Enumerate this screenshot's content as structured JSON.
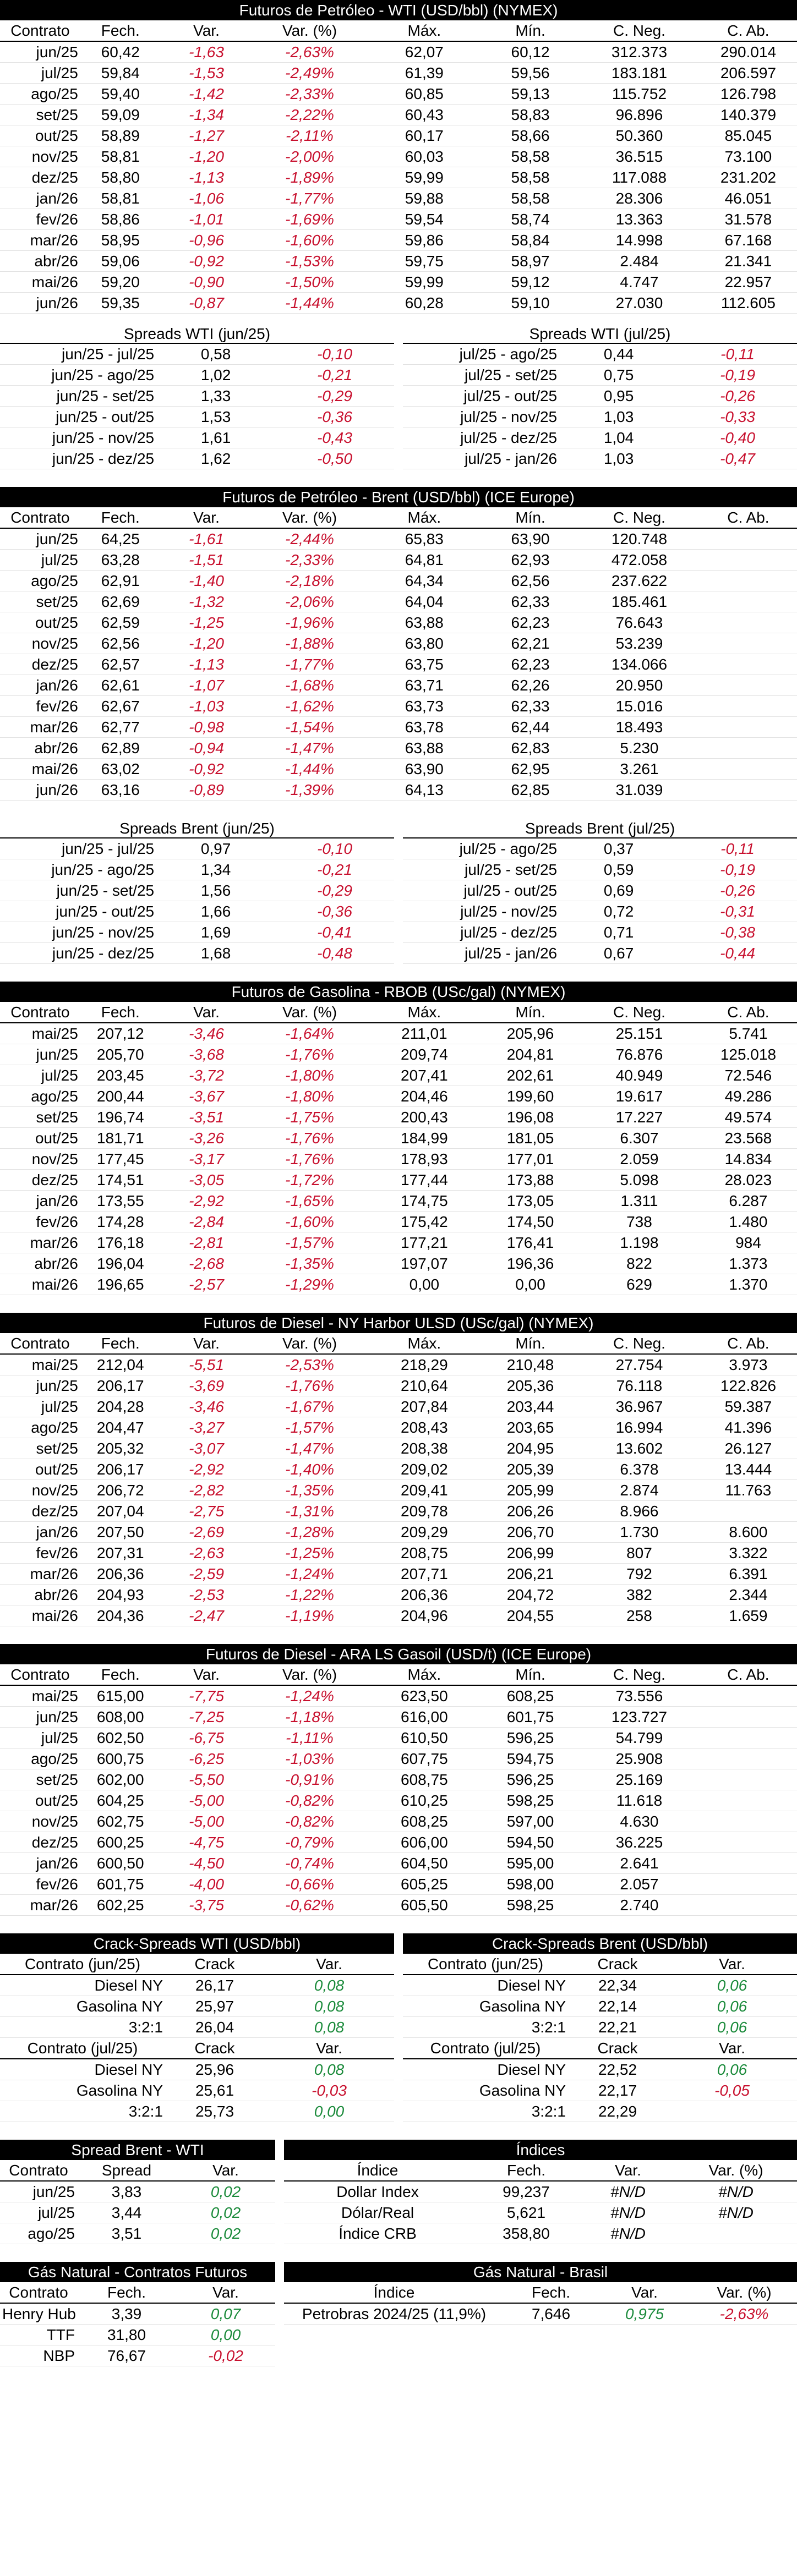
{
  "wti": {
    "title": "Futuros de Petróleo - WTI (USD/bbl) (NYMEX)",
    "headers": [
      "Contrato",
      "Fech.",
      "Var.",
      "Var. (%)",
      "Máx.",
      "Mín.",
      "C. Neg.",
      "C. Ab."
    ],
    "rows": [
      [
        "jun/25",
        "60,42",
        "-1,63",
        "-2,63%",
        "62,07",
        "60,12",
        "312.373",
        "290.014"
      ],
      [
        "jul/25",
        "59,84",
        "-1,53",
        "-2,49%",
        "61,39",
        "59,56",
        "183.181",
        "206.597"
      ],
      [
        "ago/25",
        "59,40",
        "-1,42",
        "-2,33%",
        "60,85",
        "59,13",
        "115.752",
        "126.798"
      ],
      [
        "set/25",
        "59,09",
        "-1,34",
        "-2,22%",
        "60,43",
        "58,83",
        "96.896",
        "140.379"
      ],
      [
        "out/25",
        "58,89",
        "-1,27",
        "-2,11%",
        "60,17",
        "58,66",
        "50.360",
        "85.045"
      ],
      [
        "nov/25",
        "58,81",
        "-1,20",
        "-2,00%",
        "60,03",
        "58,58",
        "36.515",
        "73.100"
      ],
      [
        "dez/25",
        "58,80",
        "-1,13",
        "-1,89%",
        "59,99",
        "58,58",
        "117.088",
        "231.202"
      ],
      [
        "jan/26",
        "58,81",
        "-1,06",
        "-1,77%",
        "59,88",
        "58,58",
        "28.306",
        "46.051"
      ],
      [
        "fev/26",
        "58,86",
        "-1,01",
        "-1,69%",
        "59,54",
        "58,74",
        "13.363",
        "31.578"
      ],
      [
        "mar/26",
        "58,95",
        "-0,96",
        "-1,60%",
        "59,86",
        "58,84",
        "14.998",
        "67.168"
      ],
      [
        "abr/26",
        "59,06",
        "-0,92",
        "-1,53%",
        "59,75",
        "58,97",
        "2.484",
        "21.341"
      ],
      [
        "mai/26",
        "59,20",
        "-0,90",
        "-1,50%",
        "59,99",
        "59,12",
        "4.747",
        "22.957"
      ],
      [
        "jun/26",
        "59,35",
        "-0,87",
        "-1,44%",
        "60,28",
        "59,10",
        "27.030",
        "112.605"
      ]
    ],
    "spreads_left_title": "Spreads WTI (jun/25)",
    "spreads_right_title": "Spreads WTI (jul/25)",
    "spreads_left": [
      [
        "jun/25 - jul/25",
        "0,58",
        "-0,10"
      ],
      [
        "jun/25 - ago/25",
        "1,02",
        "-0,21"
      ],
      [
        "jun/25 - set/25",
        "1,33",
        "-0,29"
      ],
      [
        "jun/25 - out/25",
        "1,53",
        "-0,36"
      ],
      [
        "jun/25 - nov/25",
        "1,61",
        "-0,43"
      ],
      [
        "jun/25 - dez/25",
        "1,62",
        "-0,50"
      ]
    ],
    "spreads_right": [
      [
        "jul/25 - ago/25",
        "0,44",
        "-0,11"
      ],
      [
        "jul/25 - set/25",
        "0,75",
        "-0,19"
      ],
      [
        "jul/25 - out/25",
        "0,95",
        "-0,26"
      ],
      [
        "jul/25 - nov/25",
        "1,03",
        "-0,33"
      ],
      [
        "jul/25 - dez/25",
        "1,04",
        "-0,40"
      ],
      [
        "jul/25 - jan/26",
        "1,03",
        "-0,47"
      ]
    ]
  },
  "brent": {
    "title": "Futuros de Petróleo - Brent (USD/bbl) (ICE Europe)",
    "headers": [
      "Contrato",
      "Fech.",
      "Var.",
      "Var. (%)",
      "Máx.",
      "Mín.",
      "C. Neg.",
      "C. Ab."
    ],
    "rows": [
      [
        "jun/25",
        "64,25",
        "-1,61",
        "-2,44%",
        "65,83",
        "63,90",
        "120.748",
        ""
      ],
      [
        "jul/25",
        "63,28",
        "-1,51",
        "-2,33%",
        "64,81",
        "62,93",
        "472.058",
        ""
      ],
      [
        "ago/25",
        "62,91",
        "-1,40",
        "-2,18%",
        "64,34",
        "62,56",
        "237.622",
        ""
      ],
      [
        "set/25",
        "62,69",
        "-1,32",
        "-2,06%",
        "64,04",
        "62,33",
        "185.461",
        ""
      ],
      [
        "out/25",
        "62,59",
        "-1,25",
        "-1,96%",
        "63,88",
        "62,23",
        "76.643",
        ""
      ],
      [
        "nov/25",
        "62,56",
        "-1,20",
        "-1,88%",
        "63,80",
        "62,21",
        "53.239",
        ""
      ],
      [
        "dez/25",
        "62,57",
        "-1,13",
        "-1,77%",
        "63,75",
        "62,23",
        "134.066",
        ""
      ],
      [
        "jan/26",
        "62,61",
        "-1,07",
        "-1,68%",
        "63,71",
        "62,26",
        "20.950",
        ""
      ],
      [
        "fev/26",
        "62,67",
        "-1,03",
        "-1,62%",
        "63,73",
        "62,33",
        "15.016",
        ""
      ],
      [
        "mar/26",
        "62,77",
        "-0,98",
        "-1,54%",
        "63,78",
        "62,44",
        "18.493",
        ""
      ],
      [
        "abr/26",
        "62,89",
        "-0,94",
        "-1,47%",
        "63,88",
        "62,83",
        "5.230",
        ""
      ],
      [
        "mai/26",
        "63,02",
        "-0,92",
        "-1,44%",
        "63,90",
        "62,95",
        "3.261",
        ""
      ],
      [
        "jun/26",
        "63,16",
        "-0,89",
        "-1,39%",
        "64,13",
        "62,85",
        "31.039",
        ""
      ]
    ],
    "spreads_left_title": "Spreads Brent (jun/25)",
    "spreads_right_title": "Spreads Brent (jul/25)",
    "spreads_left": [
      [
        "jun/25 - jul/25",
        "0,97",
        "-0,10"
      ],
      [
        "jun/25 - ago/25",
        "1,34",
        "-0,21"
      ],
      [
        "jun/25 - set/25",
        "1,56",
        "-0,29"
      ],
      [
        "jun/25 - out/25",
        "1,66",
        "-0,36"
      ],
      [
        "jun/25 - nov/25",
        "1,69",
        "-0,41"
      ],
      [
        "jun/25 - dez/25",
        "1,68",
        "-0,48"
      ]
    ],
    "spreads_right": [
      [
        "jul/25 - ago/25",
        "0,37",
        "-0,11"
      ],
      [
        "jul/25 - set/25",
        "0,59",
        "-0,19"
      ],
      [
        "jul/25 - out/25",
        "0,69",
        "-0,26"
      ],
      [
        "jul/25 - nov/25",
        "0,72",
        "-0,31"
      ],
      [
        "jul/25 - dez/25",
        "0,71",
        "-0,38"
      ],
      [
        "jul/25 - jan/26",
        "0,67",
        "-0,44"
      ]
    ]
  },
  "rbob": {
    "title": "Futuros de Gasolina - RBOB (USc/gal) (NYMEX)",
    "headers": [
      "Contrato",
      "Fech.",
      "Var.",
      "Var. (%)",
      "Máx.",
      "Mín.",
      "C. Neg.",
      "C. Ab."
    ],
    "rows": [
      [
        "mai/25",
        "207,12",
        "-3,46",
        "-1,64%",
        "211,01",
        "205,96",
        "25.151",
        "5.741"
      ],
      [
        "jun/25",
        "205,70",
        "-3,68",
        "-1,76%",
        "209,74",
        "204,81",
        "76.876",
        "125.018"
      ],
      [
        "jul/25",
        "203,45",
        "-3,72",
        "-1,80%",
        "207,41",
        "202,61",
        "40.949",
        "72.546"
      ],
      [
        "ago/25",
        "200,44",
        "-3,67",
        "-1,80%",
        "204,46",
        "199,60",
        "19.617",
        "49.286"
      ],
      [
        "set/25",
        "196,74",
        "-3,51",
        "-1,75%",
        "200,43",
        "196,08",
        "17.227",
        "49.574"
      ],
      [
        "out/25",
        "181,71",
        "-3,26",
        "-1,76%",
        "184,99",
        "181,05",
        "6.307",
        "23.568"
      ],
      [
        "nov/25",
        "177,45",
        "-3,17",
        "-1,76%",
        "178,93",
        "177,01",
        "2.059",
        "14.834"
      ],
      [
        "dez/25",
        "174,51",
        "-3,05",
        "-1,72%",
        "177,44",
        "173,88",
        "5.098",
        "28.023"
      ],
      [
        "jan/26",
        "173,55",
        "-2,92",
        "-1,65%",
        "174,75",
        "173,05",
        "1.311",
        "6.287"
      ],
      [
        "fev/26",
        "174,28",
        "-2,84",
        "-1,60%",
        "175,42",
        "174,50",
        "738",
        "1.480"
      ],
      [
        "mar/26",
        "176,18",
        "-2,81",
        "-1,57%",
        "177,21",
        "176,41",
        "1.198",
        "984"
      ],
      [
        "abr/26",
        "196,04",
        "-2,68",
        "-1,35%",
        "197,07",
        "196,36",
        "822",
        "1.373"
      ],
      [
        "mai/26",
        "196,65",
        "-2,57",
        "-1,29%",
        "0,00",
        "0,00",
        "629",
        "1.370"
      ]
    ]
  },
  "diesel_ny": {
    "title": "Futuros de Diesel - NY Harbor ULSD (USc/gal) (NYMEX)",
    "headers": [
      "Contrato",
      "Fech.",
      "Var.",
      "Var. (%)",
      "Máx.",
      "Mín.",
      "C. Neg.",
      "C. Ab."
    ],
    "rows": [
      [
        "mai/25",
        "212,04",
        "-5,51",
        "-2,53%",
        "218,29",
        "210,48",
        "27.754",
        "3.973"
      ],
      [
        "jun/25",
        "206,17",
        "-3,69",
        "-1,76%",
        "210,64",
        "205,36",
        "76.118",
        "122.826"
      ],
      [
        "jul/25",
        "204,28",
        "-3,46",
        "-1,67%",
        "207,84",
        "203,44",
        "36.967",
        "59.387"
      ],
      [
        "ago/25",
        "204,47",
        "-3,27",
        "-1,57%",
        "208,43",
        "203,65",
        "16.994",
        "41.396"
      ],
      [
        "set/25",
        "205,32",
        "-3,07",
        "-1,47%",
        "208,38",
        "204,95",
        "13.602",
        "26.127"
      ],
      [
        "out/25",
        "206,17",
        "-2,92",
        "-1,40%",
        "209,02",
        "205,39",
        "6.378",
        "13.444"
      ],
      [
        "nov/25",
        "206,72",
        "-2,82",
        "-1,35%",
        "209,41",
        "205,99",
        "2.874",
        "11.763"
      ],
      [
        "dez/25",
        "207,04",
        "-2,75",
        "-1,31%",
        "209,78",
        "206,26",
        "8.966",
        ""
      ],
      [
        "jan/26",
        "207,50",
        "-2,69",
        "-1,28%",
        "209,29",
        "206,70",
        "1.730",
        "8.600"
      ],
      [
        "fev/26",
        "207,31",
        "-2,63",
        "-1,25%",
        "208,75",
        "206,99",
        "807",
        "3.322"
      ],
      [
        "mar/26",
        "206,36",
        "-2,59",
        "-1,24%",
        "207,71",
        "206,21",
        "792",
        "6.391"
      ],
      [
        "abr/26",
        "204,93",
        "-2,53",
        "-1,22%",
        "206,36",
        "204,72",
        "382",
        "2.344"
      ],
      [
        "mai/26",
        "204,36",
        "-2,47",
        "-1,19%",
        "204,96",
        "204,55",
        "258",
        "1.659"
      ]
    ]
  },
  "gasoil": {
    "title": "Futuros de Diesel - ARA LS Gasoil (USD/t) (ICE Europe)",
    "headers": [
      "Contrato",
      "Fech.",
      "Var.",
      "Var. (%)",
      "Máx.",
      "Mín.",
      "C. Neg.",
      "C. Ab."
    ],
    "rows": [
      [
        "mai/25",
        "615,00",
        "-7,75",
        "-1,24%",
        "623,50",
        "608,25",
        "73.556",
        ""
      ],
      [
        "jun/25",
        "608,00",
        "-7,25",
        "-1,18%",
        "616,00",
        "601,75",
        "123.727",
        ""
      ],
      [
        "jul/25",
        "602,50",
        "-6,75",
        "-1,11%",
        "610,50",
        "596,25",
        "54.799",
        ""
      ],
      [
        "ago/25",
        "600,75",
        "-6,25",
        "-1,03%",
        "607,75",
        "594,75",
        "25.908",
        ""
      ],
      [
        "set/25",
        "602,00",
        "-5,50",
        "-0,91%",
        "608,75",
        "596,25",
        "25.169",
        ""
      ],
      [
        "out/25",
        "604,25",
        "-5,00",
        "-0,82%",
        "610,25",
        "598,25",
        "11.618",
        ""
      ],
      [
        "nov/25",
        "602,75",
        "-5,00",
        "-0,82%",
        "608,25",
        "597,00",
        "4.630",
        ""
      ],
      [
        "dez/25",
        "600,25",
        "-4,75",
        "-0,79%",
        "606,00",
        "594,50",
        "36.225",
        ""
      ],
      [
        "jan/26",
        "600,50",
        "-4,50",
        "-0,74%",
        "604,50",
        "595,00",
        "2.641",
        ""
      ],
      [
        "fev/26",
        "601,75",
        "-4,00",
        "-0,66%",
        "605,25",
        "598,00",
        "2.057",
        ""
      ],
      [
        "mar/26",
        "602,25",
        "-3,75",
        "-0,62%",
        "605,50",
        "598,25",
        "2.740",
        ""
      ]
    ]
  },
  "crack_wti": {
    "title": "Crack-Spreads WTI (USD/bbl)",
    "blocks": [
      {
        "h": [
          "Contrato (jun/25)",
          "Crack",
          "Var."
        ],
        "rows": [
          [
            "Diesel NY",
            "26,17",
            "0,08"
          ],
          [
            "Gasolina NY",
            "25,97",
            "0,08"
          ],
          [
            "3:2:1",
            "26,04",
            "0,08"
          ]
        ]
      },
      {
        "h": [
          "Contrato (jul/25)",
          "Crack",
          "Var."
        ],
        "rows": [
          [
            "Diesel NY",
            "25,96",
            "0,08"
          ],
          [
            "Gasolina NY",
            "25,61",
            "-0,03"
          ],
          [
            "3:2:1",
            "25,73",
            "0,00"
          ]
        ]
      }
    ]
  },
  "crack_brent": {
    "title": "Crack-Spreads Brent (USD/bbl)",
    "blocks": [
      {
        "h": [
          "Contrato (jun/25)",
          "Crack",
          "Var."
        ],
        "rows": [
          [
            "Diesel NY",
            "22,34",
            "0,06"
          ],
          [
            "Gasolina NY",
            "22,14",
            "0,06"
          ],
          [
            "3:2:1",
            "22,21",
            "0,06"
          ]
        ]
      },
      {
        "h": [
          "Contrato (jul/25)",
          "Crack",
          "Var."
        ],
        "rows": [
          [
            "Diesel NY",
            "22,52",
            "0,06"
          ],
          [
            "Gasolina NY",
            "22,17",
            "-0,05"
          ],
          [
            "3:2:1",
            "22,29",
            ""
          ]
        ]
      }
    ]
  },
  "spread_bw": {
    "title": "Spread Brent - WTI",
    "h": [
      "Contrato",
      "Spread",
      "Var."
    ],
    "rows": [
      [
        "jun/25",
        "3,83",
        "0,02"
      ],
      [
        "jul/25",
        "3,44",
        "0,02"
      ],
      [
        "ago/25",
        "3,51",
        "0,02"
      ]
    ]
  },
  "indices": {
    "title": "Índices",
    "h": [
      "Índice",
      "Fech.",
      "Var.",
      "Var. (%)"
    ],
    "rows": [
      [
        "Dollar Index",
        "99,237",
        "#N/D",
        "#N/D"
      ],
      [
        "Dólar/Real",
        "5,621",
        "#N/D",
        "#N/D"
      ],
      [
        "Índice CRB",
        "358,80",
        "#N/D",
        ""
      ]
    ]
  },
  "gas_fut": {
    "title": "Gás Natural - Contratos Futuros",
    "h": [
      "Contrato",
      "Fech.",
      "Var."
    ],
    "rows": [
      [
        "Henry Hub",
        "3,39",
        "0,07"
      ],
      [
        "TTF",
        "31,80",
        "0,00"
      ],
      [
        "NBP",
        "76,67",
        "-0,02"
      ]
    ]
  },
  "gas_br": {
    "title": "Gás Natural - Brasil",
    "h": [
      "Índice",
      "Fech.",
      "Var.",
      "Var. (%)"
    ],
    "rows": [
      [
        "Petrobras 2024/25 (11,9%)",
        "7,646",
        "0,975",
        "-2,63%"
      ]
    ]
  }
}
